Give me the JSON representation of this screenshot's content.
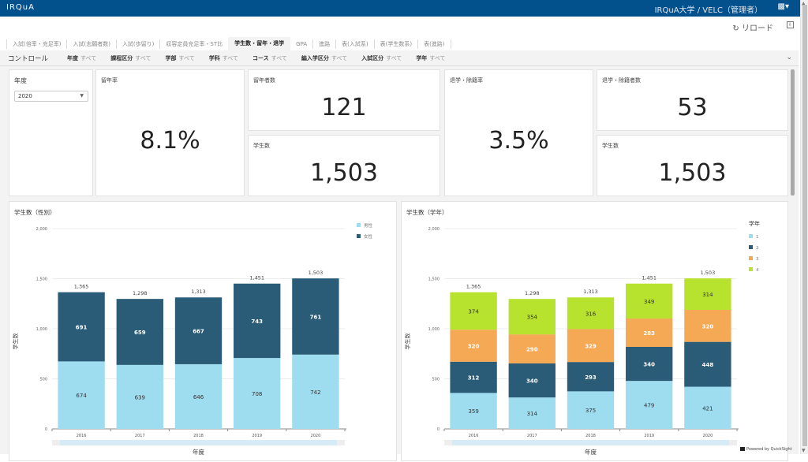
{
  "header": {
    "brand": "IRQuA",
    "user": "IRQuA大学 / VELC（管理者）",
    "user_menu_icon": "user-menu-icon",
    "reload_label": "リロード",
    "export_icon": "export-icon"
  },
  "tabs": [
    {
      "label": "入試(倍率・充足率)",
      "active": false
    },
    {
      "label": "入試(志願者数)",
      "active": false
    },
    {
      "label": "入試(歩留り)",
      "active": false
    },
    {
      "label": "収容定員充足率・ST比",
      "active": false
    },
    {
      "label": "学生数・留年・退学",
      "active": true
    },
    {
      "label": "GPA",
      "active": false
    },
    {
      "label": "進路",
      "active": false
    },
    {
      "label": "表(入試系)",
      "active": false
    },
    {
      "label": "表(学生数系)",
      "active": false
    },
    {
      "label": "表(進路)",
      "active": false
    }
  ],
  "controls": {
    "title": "コントロール",
    "filters": [
      {
        "name": "年度",
        "value": "すべて"
      },
      {
        "name": "課程区分",
        "value": "すべて"
      },
      {
        "name": "学部",
        "value": "すべて"
      },
      {
        "name": "学科",
        "value": "すべて"
      },
      {
        "name": "コース",
        "value": "すべて"
      },
      {
        "name": "編入学区分",
        "value": "すべて"
      },
      {
        "name": "入試区分",
        "value": "すべて"
      },
      {
        "name": "学年",
        "value": "すべて"
      }
    ]
  },
  "year_filter": {
    "label": "年度",
    "selected": "2020"
  },
  "kpis": {
    "repeat_rate": {
      "label": "留年率",
      "value": "8.1%"
    },
    "repeat_count": {
      "label": "留年者数",
      "value": "121"
    },
    "students_1": {
      "label": "学生数",
      "value": "1,503"
    },
    "withdraw_rate": {
      "label": "退学・除籍率",
      "value": "3.5%"
    },
    "withdraw_count": {
      "label": "退学・除籍者数",
      "value": "53"
    },
    "students_2": {
      "label": "学生数",
      "value": "1,503"
    }
  },
  "footer": {
    "powered_by": "Powered by QuickSight"
  },
  "chart_data": [
    {
      "type": "bar",
      "stacked": true,
      "title": "学生数（性別）",
      "xlabel": "年度",
      "ylabel": "学生数",
      "ylim": [
        0,
        2000
      ],
      "yticks": [
        0,
        500,
        1000,
        1500,
        2000
      ],
      "ytick_labels": [
        "0",
        "500",
        "1,000",
        "1,500",
        "2,000"
      ],
      "grid": true,
      "legend": "top-right",
      "legend_title": "",
      "categories": [
        "2016",
        "2017",
        "2018",
        "2019",
        "2020"
      ],
      "series": [
        {
          "name": "男性",
          "color": "#9edcef",
          "values": [
            674,
            639,
            646,
            708,
            742
          ]
        },
        {
          "name": "女性",
          "color": "#2a5c78",
          "values": [
            691,
            659,
            667,
            743,
            761
          ]
        }
      ],
      "totals": [
        1365,
        1298,
        1313,
        1451,
        1503
      ],
      "total_labels": [
        "1,365",
        "1,298",
        "1,313",
        "1,451",
        "1,503"
      ]
    },
    {
      "type": "bar",
      "stacked": true,
      "title": "学生数（学年）",
      "xlabel": "年度",
      "ylabel": "学生数",
      "ylim": [
        0,
        2000
      ],
      "yticks": [
        0,
        500,
        1000,
        1500,
        2000
      ],
      "ytick_labels": [
        "0",
        "500",
        "1,000",
        "1,500",
        "2,000"
      ],
      "grid": true,
      "legend": "top-right",
      "legend_title": "学年",
      "categories": [
        "2016",
        "2017",
        "2018",
        "2019",
        "2020"
      ],
      "series": [
        {
          "name": "1",
          "color": "#9edcef",
          "values": [
            359,
            314,
            375,
            479,
            421
          ]
        },
        {
          "name": "2",
          "color": "#2a5c78",
          "values": [
            312,
            340,
            293,
            340,
            448
          ]
        },
        {
          "name": "3",
          "color": "#f5a954",
          "values": [
            320,
            290,
            329,
            283,
            320
          ]
        },
        {
          "name": "4",
          "color": "#b7e22e",
          "values": [
            374,
            354,
            316,
            349,
            314
          ]
        }
      ],
      "totals": [
        1365,
        1298,
        1313,
        1451,
        1503
      ],
      "total_labels": [
        "1,365",
        "1,298",
        "1,313",
        "1,451",
        "1,503"
      ]
    }
  ]
}
